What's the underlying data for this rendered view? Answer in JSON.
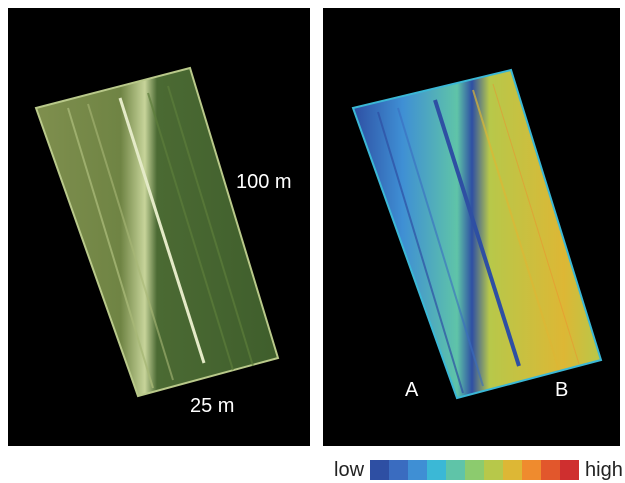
{
  "left_panel": {
    "label_length": "100 m",
    "label_width": "25 m"
  },
  "right_panel": {
    "label_a": "A",
    "label_b": "B"
  },
  "legend": {
    "low_label": "low",
    "high_label": "high",
    "colors": [
      "#2e4fa3",
      "#3a6cc0",
      "#3f8fd4",
      "#3bb8d6",
      "#5fc4a8",
      "#8ccb6e",
      "#b7c84a",
      "#ddb735",
      "#ef8b2e",
      "#e2572c",
      "#cf2f2f"
    ]
  }
}
